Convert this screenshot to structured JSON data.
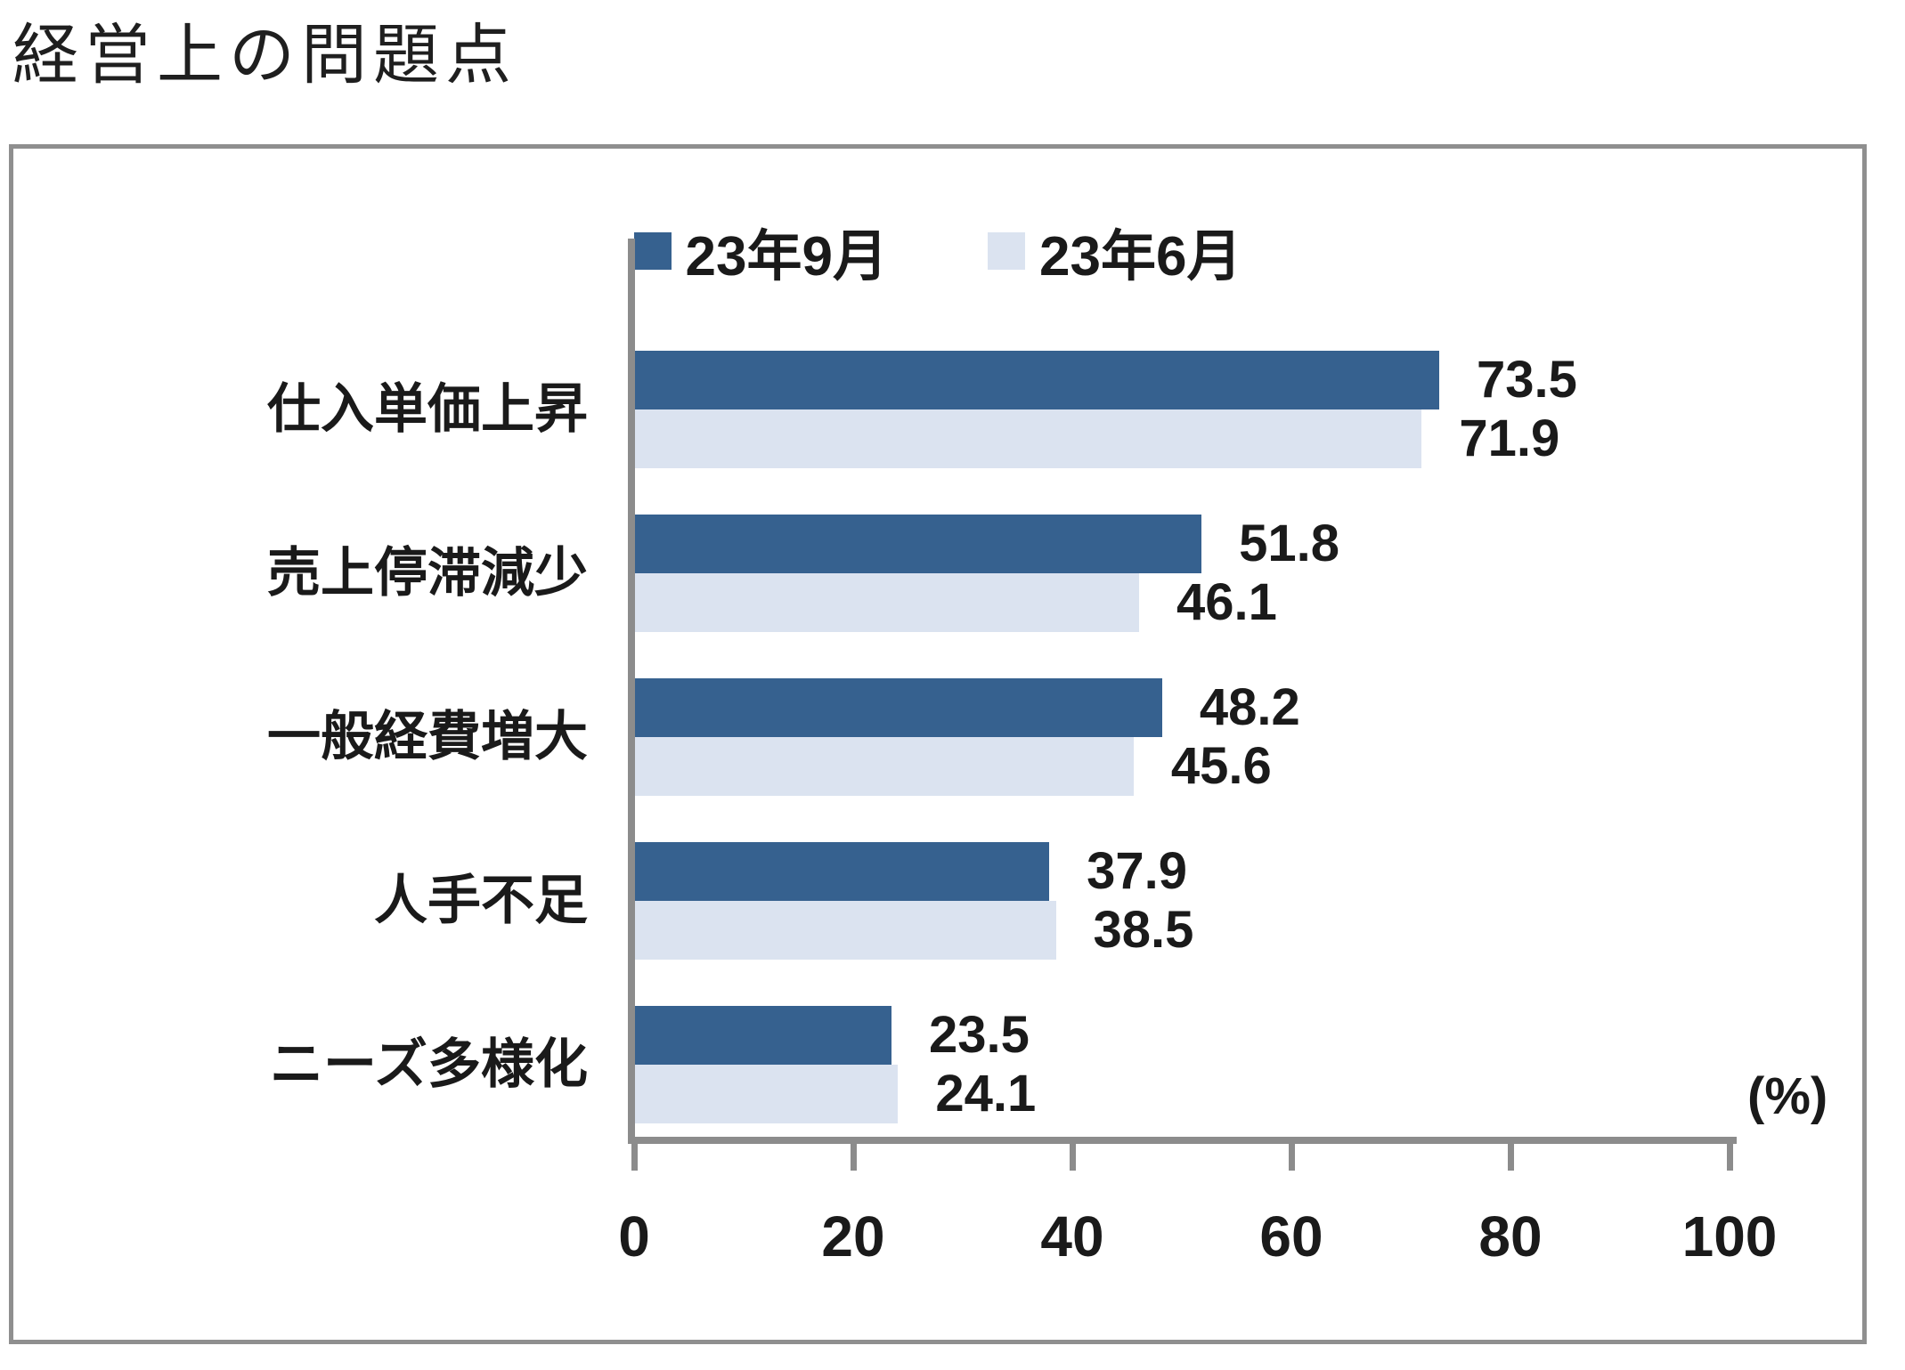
{
  "title": "経営上の問題点",
  "chart_data": {
    "type": "bar",
    "orientation": "horizontal",
    "title": "経営上の問題点",
    "categories": [
      "仕入単価上昇",
      "売上停滞減少",
      "一般経費増大",
      "人手不足",
      "ニーズ多様化"
    ],
    "series": [
      {
        "name": "23年9月",
        "color": "#36618F",
        "values": [
          73.5,
          51.8,
          48.2,
          37.9,
          23.5
        ]
      },
      {
        "name": "23年6月",
        "color": "#DBE3F0",
        "values": [
          71.9,
          46.1,
          45.6,
          38.5,
          24.1
        ]
      }
    ],
    "xlabel": "",
    "ylabel": "",
    "unit_label": "(%)",
    "xlim": [
      0,
      100
    ],
    "xticks": [
      0,
      20,
      40,
      60,
      80,
      100
    ],
    "legend_position": "top",
    "value_labels": true,
    "grid": false
  },
  "colors": {
    "axis": "#8c8c8c",
    "frame_border": "#8f8f8f",
    "text": "#1a1a1a",
    "background": "#ffffff"
  }
}
